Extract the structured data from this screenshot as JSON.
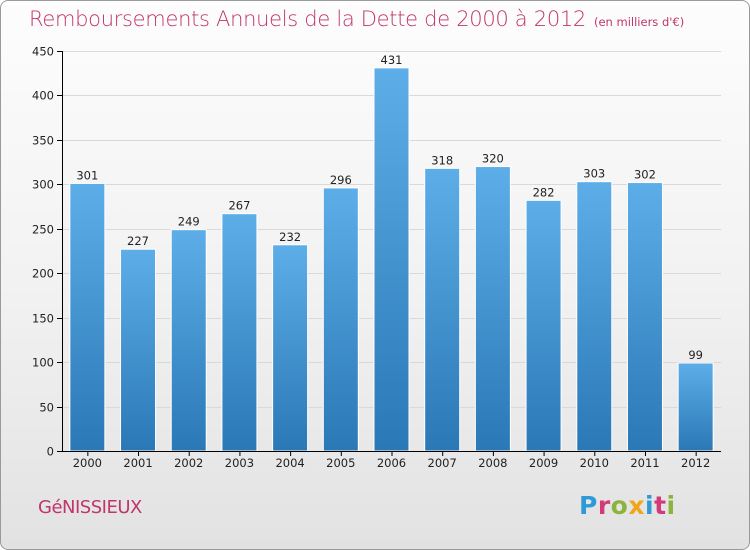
{
  "header": {
    "title": "Remboursements Annuels de la Dette de 2000 à 2012",
    "unit": "(en milliers d'€)"
  },
  "footer": {
    "commune": "GéNISSIEUX",
    "logo_letters": [
      "P",
      "r",
      "o",
      "x",
      "i",
      "t",
      "i"
    ]
  },
  "colors": {
    "title": "#c0356b",
    "bar_top": "#5daee8",
    "bar_bottom": "#2a78b6",
    "axis": "#000000",
    "grid": "#d9d9d9"
  },
  "chart_data": {
    "type": "bar",
    "title": "Remboursements Annuels de la Dette de 2000 à 2012",
    "subtitle": "(en milliers d'€)",
    "xlabel": "",
    "ylabel": "",
    "categories": [
      "2000",
      "2001",
      "2002",
      "2003",
      "2004",
      "2005",
      "2006",
      "2007",
      "2008",
      "2009",
      "2010",
      "2011",
      "2012"
    ],
    "values": [
      301,
      227,
      249,
      267,
      232,
      296,
      431,
      318,
      320,
      282,
      303,
      302,
      99
    ],
    "ylim": [
      0,
      450
    ],
    "yticks": [
      0,
      50,
      100,
      150,
      200,
      250,
      300,
      350,
      400,
      450
    ],
    "grid": true,
    "data_labels": true
  }
}
